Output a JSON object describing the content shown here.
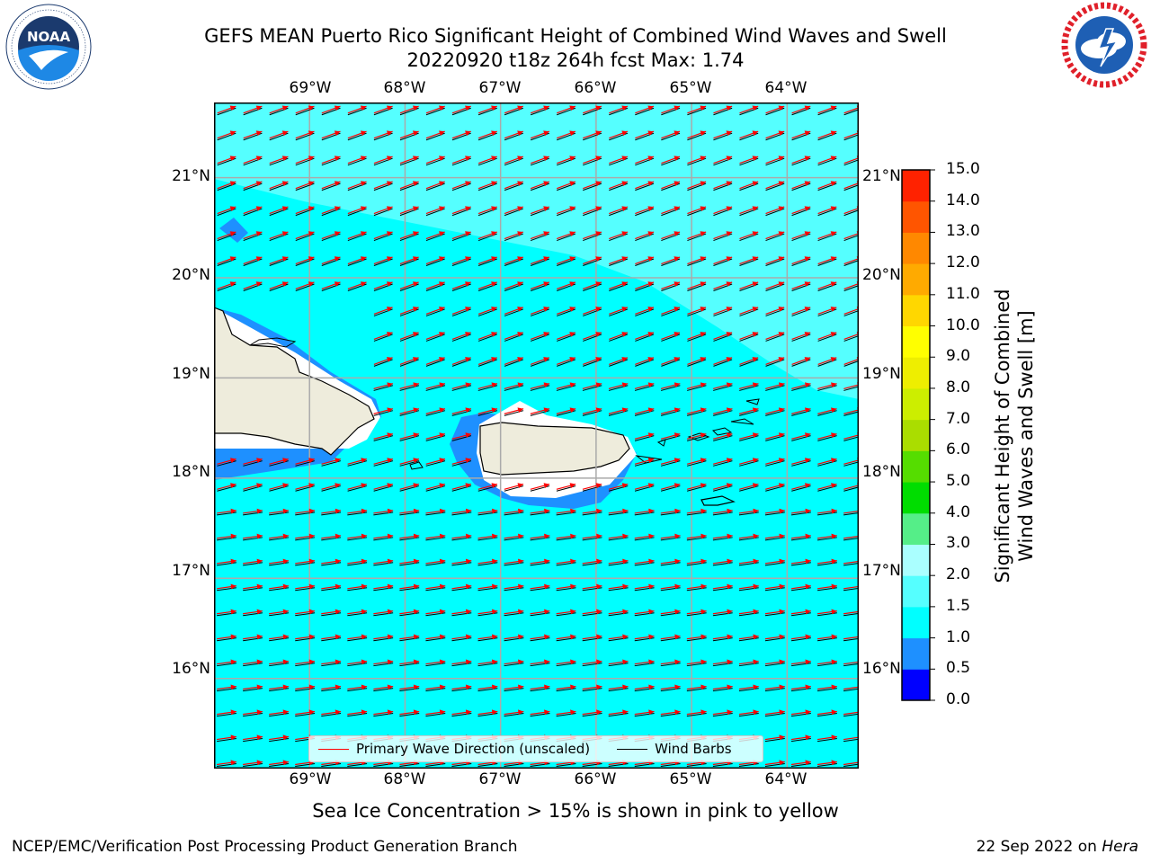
{
  "title": {
    "line1": "GEFS MEAN Puerto Rico Significant Height of Combined Wind Waves and Swell",
    "line2": "20220920 t18z 264h fcst   Max: 1.74"
  },
  "logos": {
    "left": {
      "text": "NOAA",
      "ring_text": "NATIONAL OCEANIC AND ATMOSPHERIC ADMINISTRATION · U.S. DEPARTMENT OF COMMERCE"
    },
    "right": {
      "ring_text": "NATIONAL WEATHER SERVICE"
    }
  },
  "map": {
    "lon_labels": [
      "69°W",
      "68°W",
      "67°W",
      "66°W",
      "65°W",
      "64°W"
    ],
    "lat_labels": [
      "21°N",
      "20°N",
      "19°N",
      "18°N",
      "17°N",
      "16°N"
    ],
    "lon_range": [
      -70.0,
      -63.25
    ],
    "lat_range": [
      15.1,
      21.75
    ],
    "colors": {
      "ocean_main": "#00ffff",
      "ocean_high": "#55ffff",
      "ocean_low": "#1e90ff",
      "land": "#eeecdc",
      "arrow": "#ff0000",
      "barb": "#000000",
      "grid": "#aaaaaa"
    }
  },
  "legend": {
    "wave_direction": "Primary Wave Direction (unscaled)",
    "wind_barbs": "Wind Barbs"
  },
  "colorbar": {
    "title_line1": "Significant Height of Combined",
    "title_line2": "Wind Waves and Swell [m]",
    "ticks": [
      "15.0",
      "14.0",
      "13.0",
      "12.0",
      "11.0",
      "10.0",
      "9.0",
      "8.0",
      "7.0",
      "6.0",
      "5.0",
      "4.0",
      "3.0",
      "2.0",
      "1.5",
      "1.0",
      "0.5",
      "0.0"
    ],
    "levels": [
      0,
      0.5,
      1,
      1.5,
      2,
      3,
      4,
      5,
      6,
      7,
      8,
      9,
      10,
      11,
      12,
      13,
      14,
      15
    ],
    "colors": [
      "#0000ff",
      "#1e90ff",
      "#00ffff",
      "#55ffff",
      "#aaffff",
      "#55ee88",
      "#00dd00",
      "#55dd00",
      "#aadd00",
      "#ccee00",
      "#eeee00",
      "#ffff00",
      "#ffd700",
      "#ffaa00",
      "#ff8800",
      "#ff5500",
      "#ff2200"
    ]
  },
  "subtitle": "Sea Ice Concentration > 15% is shown in pink to yellow",
  "footer": {
    "left": "NCEP/EMC/Verification Post Processing Product Generation Branch",
    "right_prefix": "22 Sep 2022 on ",
    "right_machine": "Hera"
  }
}
